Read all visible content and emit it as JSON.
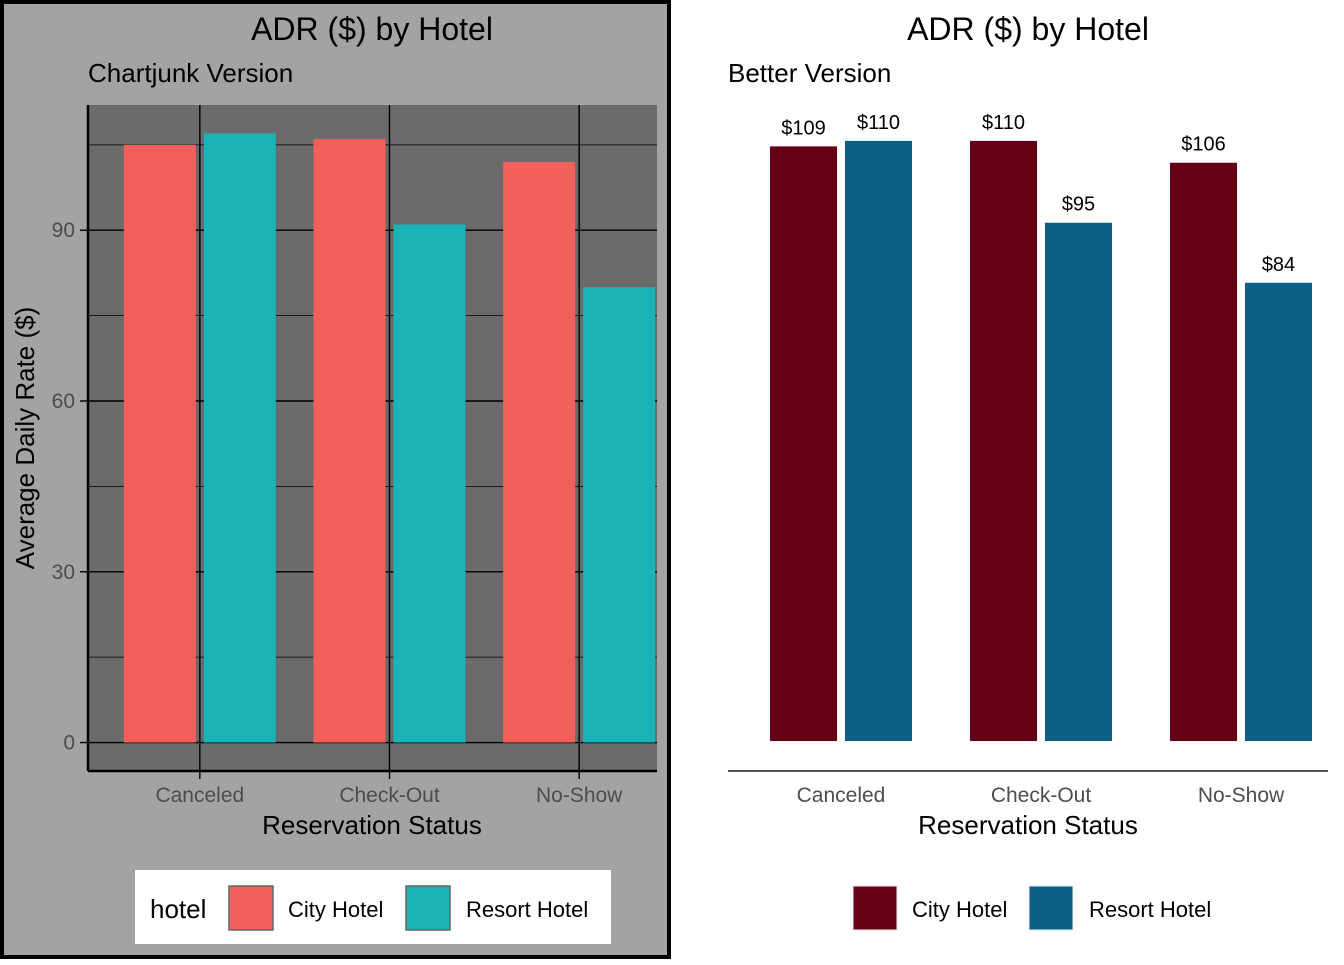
{
  "colors": {
    "left_panel_bg": "#a3a3a3",
    "left_plot_bg": "#6b6b6b",
    "left_frame": "#000000",
    "left_city": "#f3605c",
    "left_resort": "#1ab3b8",
    "right_city": "#650016",
    "right_resort": "#0d5f87",
    "axis_text": "#4d4d4d"
  },
  "chart_data": [
    {
      "type": "bar",
      "title": "ADR ($) by Hotel",
      "subtitle": "Chartjunk Version",
      "xlabel": "Reservation Status",
      "ylabel": "Average Daily Rate ($)",
      "categories": [
        "Canceled",
        "Check-Out",
        "No-Show"
      ],
      "series": [
        {
          "name": "City Hotel",
          "values": [
            105,
            106,
            102
          ]
        },
        {
          "name": "Resort Hotel",
          "values": [
            107,
            91,
            80
          ]
        }
      ],
      "ylim": [
        -5,
        112
      ],
      "yticks": [
        0,
        30,
        60,
        90
      ],
      "grid": true,
      "legend_title": "hotel",
      "legend_position": "bottom"
    },
    {
      "type": "bar",
      "title": "ADR ($) by Hotel",
      "subtitle": "Better Version",
      "xlabel": "Reservation Status",
      "ylabel": "",
      "categories": [
        "Canceled",
        "Check-Out",
        "No-Show"
      ],
      "series": [
        {
          "name": "City Hotel",
          "values": [
            109,
            110,
            106
          ]
        },
        {
          "name": "Resort Hotel",
          "values": [
            110,
            95,
            84
          ]
        }
      ],
      "data_labels": [
        [
          "$109",
          "$110",
          "$106"
        ],
        [
          "$110",
          "$95",
          "$84"
        ]
      ],
      "grid": false,
      "legend_position": "bottom"
    }
  ]
}
